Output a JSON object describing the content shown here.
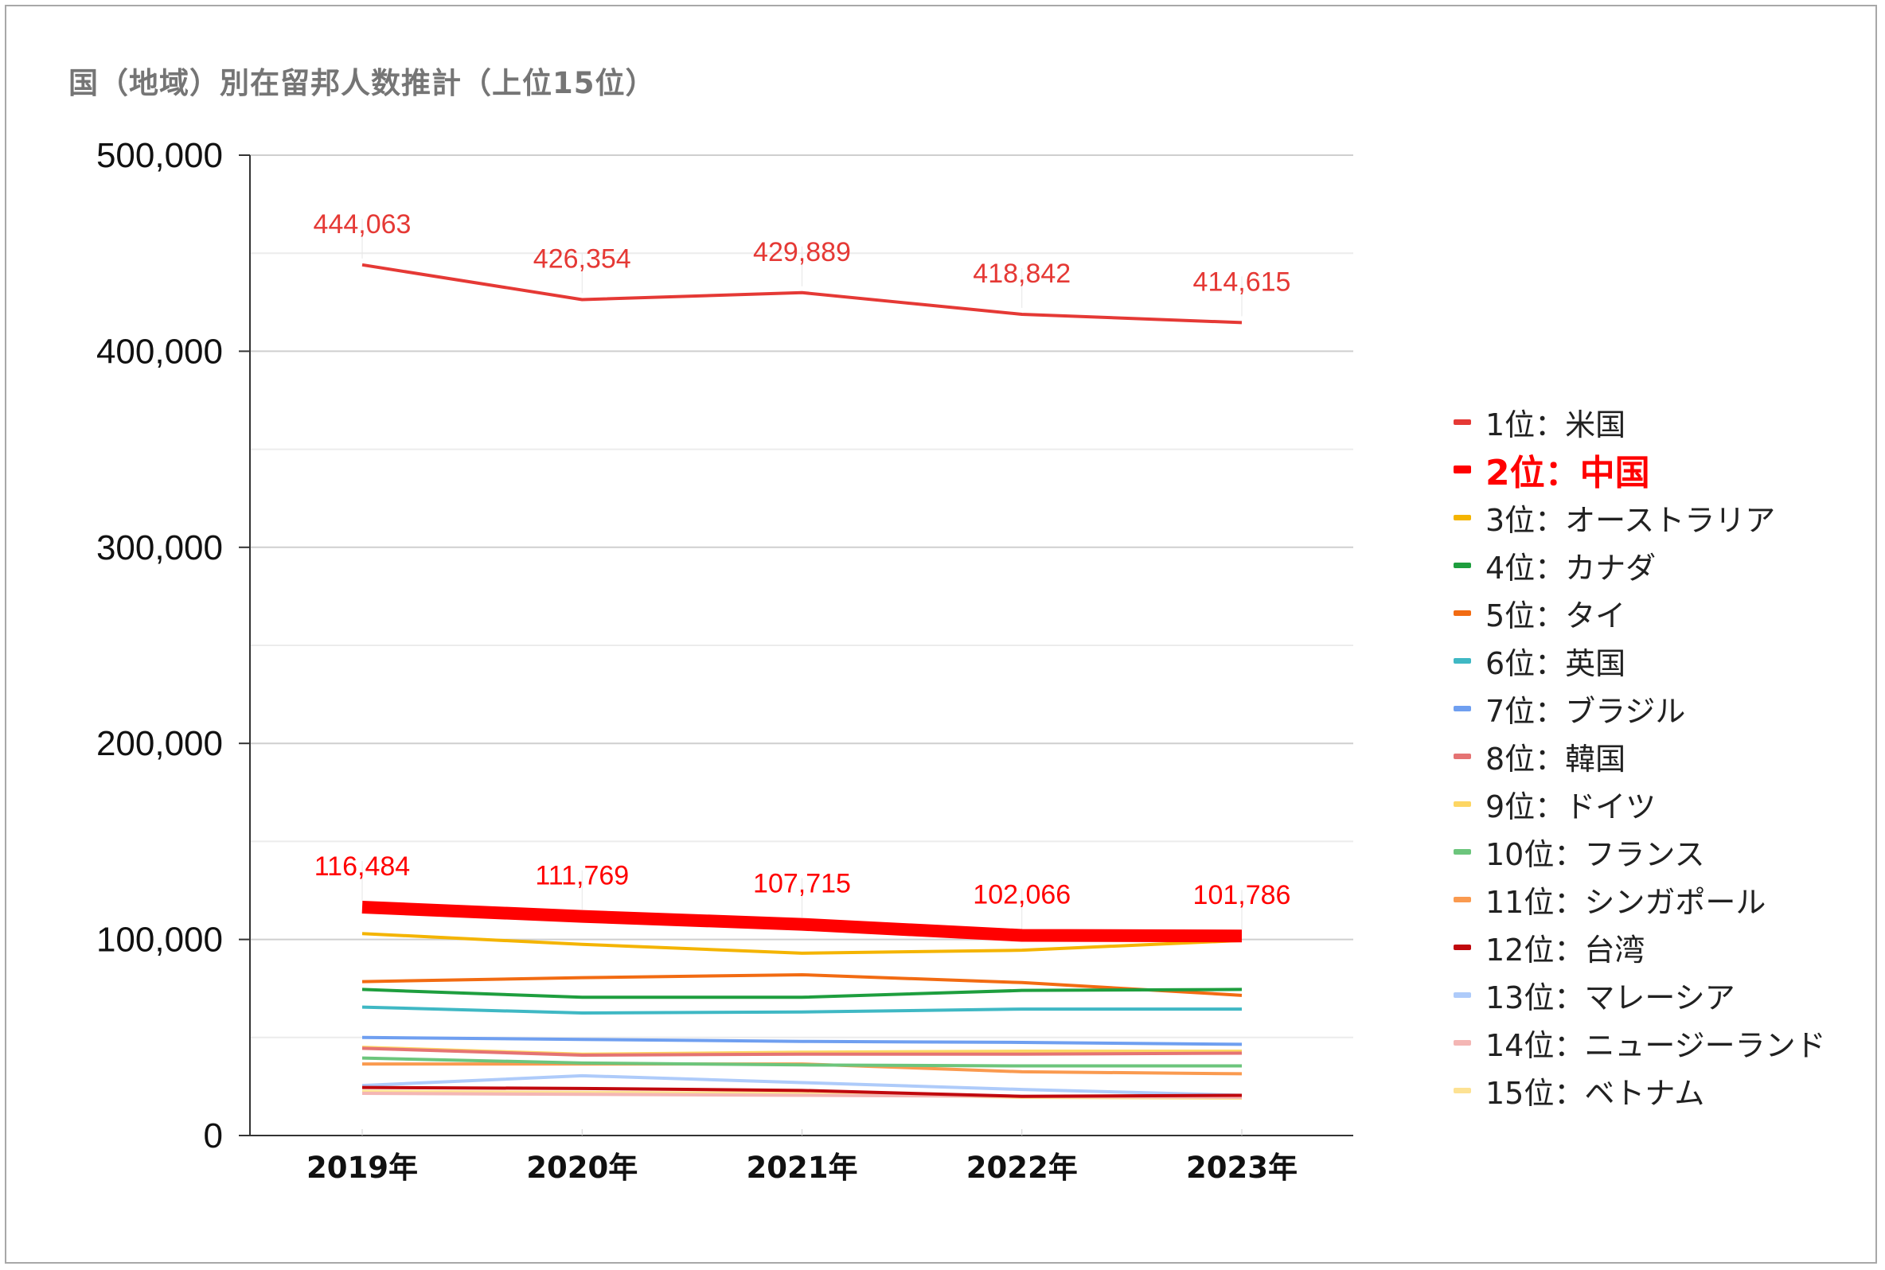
{
  "chart_data": {
    "type": "line",
    "title": "国（地域）別在留邦人数推計（上位15位）",
    "xlabel": "",
    "ylabel": "",
    "categories": [
      "2019年",
      "2020年",
      "2021年",
      "2022年",
      "2023年"
    ],
    "ylim": [
      0,
      500000
    ],
    "yticks": [
      0,
      100000,
      200000,
      300000,
      400000,
      500000
    ],
    "ytick_labels": [
      "0",
      "100,000",
      "200,000",
      "300,000",
      "400,000",
      "500,000"
    ],
    "minor_gridlines": true,
    "legend_position": "right",
    "series": [
      {
        "name": "1位：米国",
        "color": "#e53935",
        "width": 4,
        "values": [
          444063,
          426354,
          429889,
          418842,
          414615
        ],
        "labels": [
          "444,063",
          "426,354",
          "429,889",
          "418,842",
          "414,615"
        ],
        "label_color": "#e53935"
      },
      {
        "name": "2位：中国",
        "color": "#ff0000",
        "width": 16,
        "highlight": true,
        "values": [
          116484,
          111769,
          107715,
          102066,
          101786
        ],
        "labels": [
          "116,484",
          "111,769",
          "107,715",
          "102,066",
          "101,786"
        ],
        "label_color": "#ff0000"
      },
      {
        "name": "3位：オーストラリア",
        "color": "#f4b400",
        "width": 4,
        "values": [
          103000,
          97500,
          93000,
          94500,
          99500
        ]
      },
      {
        "name": "4位：カナダ",
        "color": "#1e9e3e",
        "width": 4,
        "values": [
          74500,
          70500,
          70500,
          74000,
          74500
        ]
      },
      {
        "name": "5位：タイ",
        "color": "#f26b12",
        "width": 4,
        "values": [
          78500,
          80500,
          82000,
          78000,
          71500
        ]
      },
      {
        "name": "6位：英国",
        "color": "#3fb8c4",
        "width": 4,
        "values": [
          65500,
          62500,
          63000,
          64500,
          64500
        ]
      },
      {
        "name": "7位：ブラジル",
        "color": "#6f9ff0",
        "width": 4,
        "values": [
          50000,
          49000,
          48000,
          47500,
          46500
        ]
      },
      {
        "name": "8位：韓国",
        "color": "#e57373",
        "width": 4,
        "values": [
          44500,
          41000,
          41500,
          41500,
          42000
        ]
      },
      {
        "name": "9位：ドイツ",
        "color": "#fdd663",
        "width": 4,
        "values": [
          45000,
          41500,
          42500,
          43000,
          43000
        ]
      },
      {
        "name": "10位：フランス",
        "color": "#6cc57c",
        "width": 4,
        "values": [
          39500,
          37000,
          36000,
          35500,
          35500
        ]
      },
      {
        "name": "11位：シンガポール",
        "color": "#fa9a4f",
        "width": 4,
        "values": [
          36500,
          36500,
          36500,
          32500,
          31500
        ]
      },
      {
        "name": "12位：台湾",
        "color": "#c0080d",
        "width": 4,
        "values": [
          24500,
          24000,
          23000,
          20000,
          20500
        ]
      },
      {
        "name": "13位：マレーシア",
        "color": "#aecbfa",
        "width": 4,
        "values": [
          25500,
          30500,
          27000,
          23500,
          20500
        ]
      },
      {
        "name": "14位：ニュージーランド",
        "color": "#f4b6b4",
        "width": 4,
        "values": [
          21500,
          21000,
          20500,
          20000,
          19500
        ]
      },
      {
        "name": "15位：ベトナム",
        "color": "#fde293",
        "width": 4,
        "values": [
          22500,
          22000,
          21500,
          19500,
          19000
        ]
      }
    ]
  }
}
